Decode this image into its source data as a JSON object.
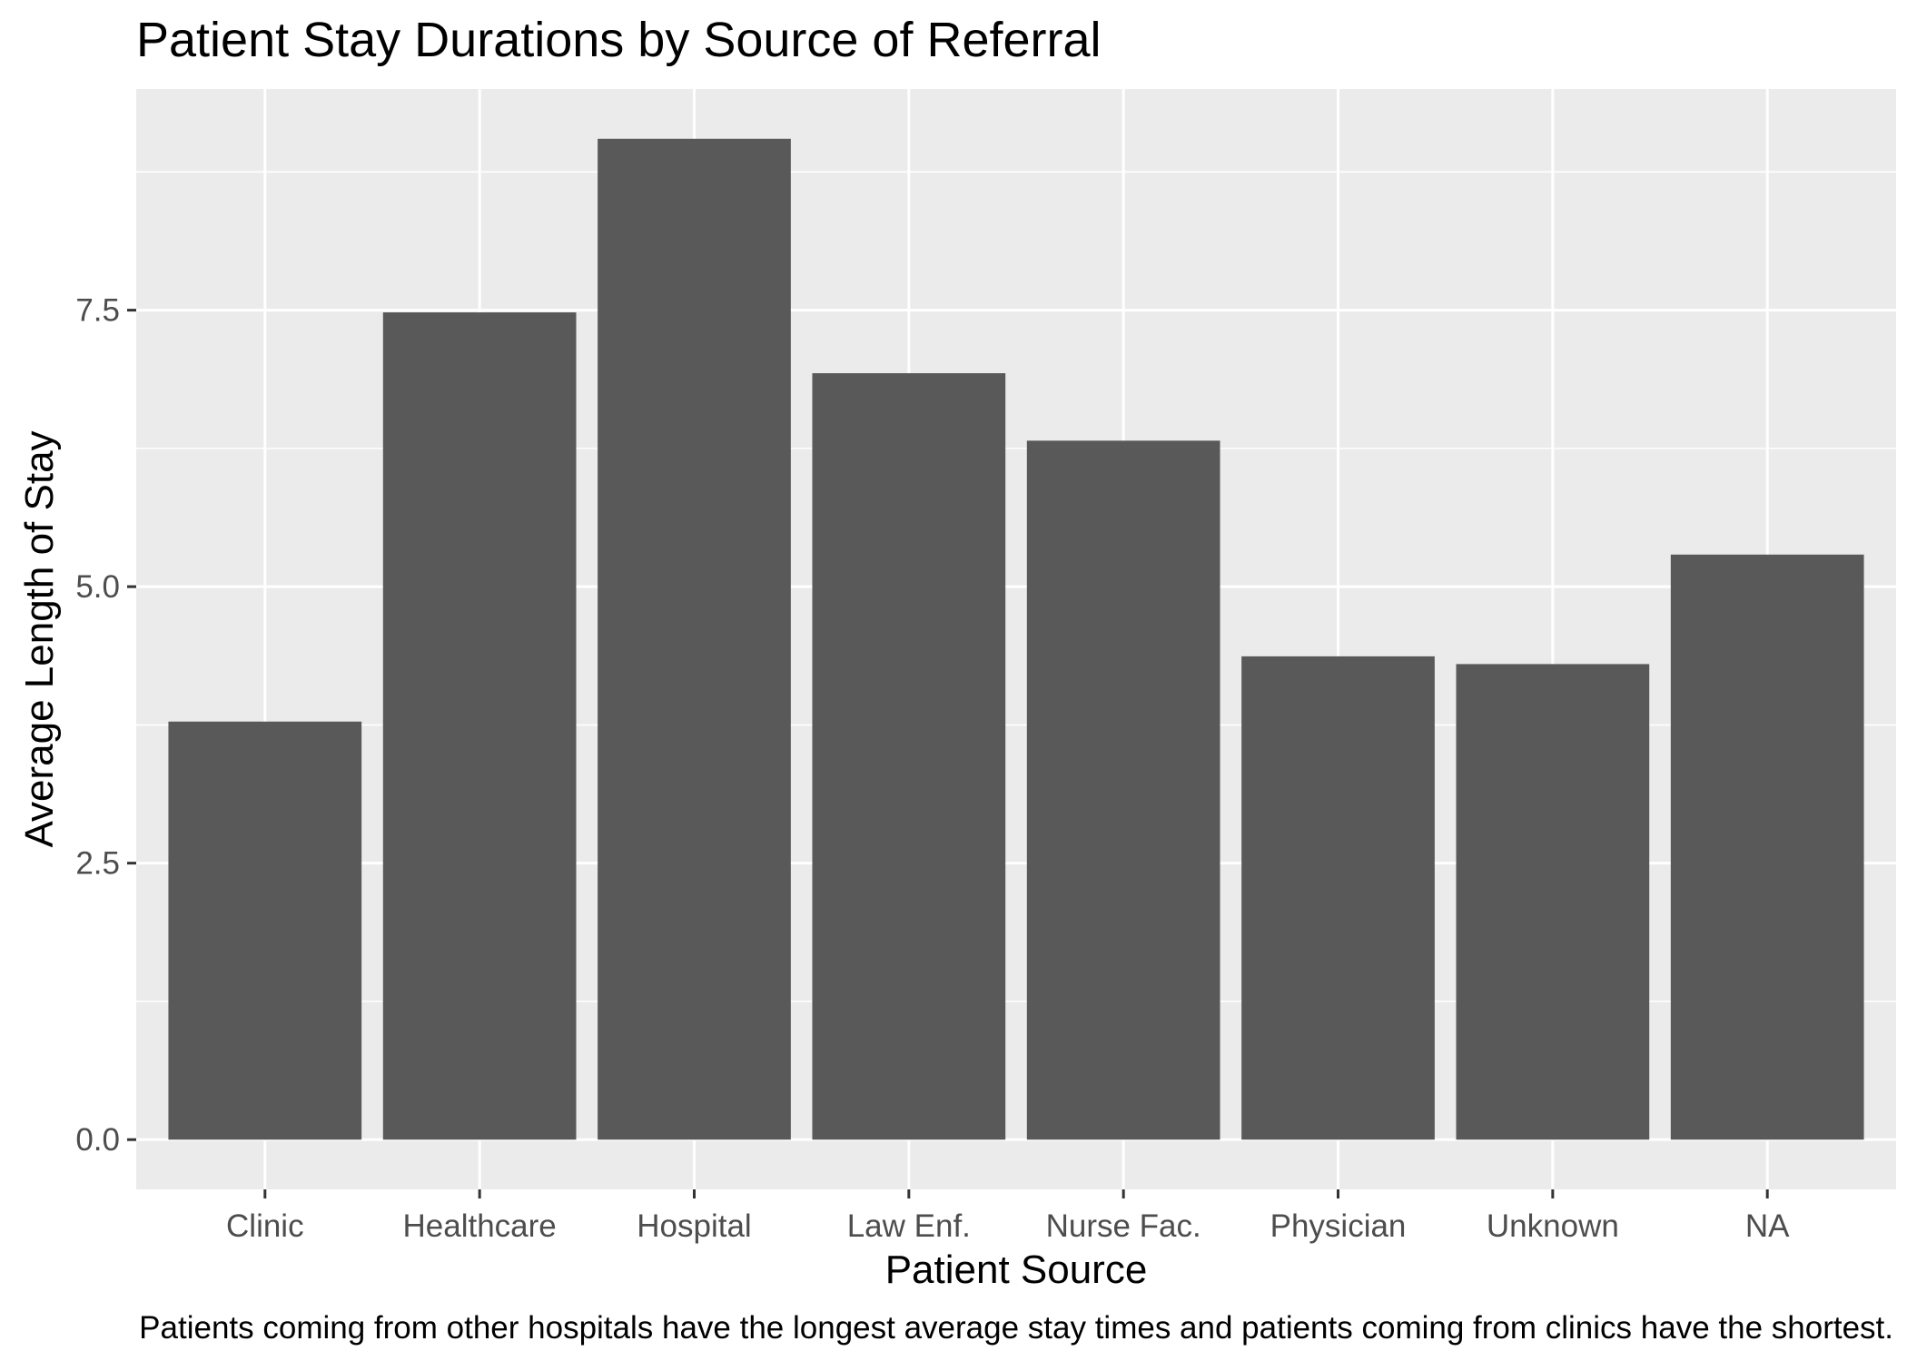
{
  "chart_data": {
    "type": "bar",
    "title": "Patient Stay Durations by Source of Referral",
    "xlabel": "Patient Source",
    "ylabel": "Average Length of Stay",
    "caption": "Patients coming from other hospitals have the longest average stay times and patients coming from clinics have the shortest.",
    "categories": [
      "Clinic",
      "Healthcare",
      "Hospital",
      "Law Enf.",
      "Nurse Fac.",
      "Physician",
      "Unknown",
      "NA"
    ],
    "values": [
      3.78,
      7.48,
      9.05,
      6.93,
      6.32,
      4.37,
      4.3,
      5.29
    ],
    "ylim": [
      -0.45,
      9.5
    ],
    "yticks": [
      0.0,
      2.5,
      5.0,
      7.5
    ],
    "ytick_labels": [
      "0.0",
      "2.5",
      "5.0",
      "7.5"
    ],
    "grid": true,
    "panel_color": "#ebebeb",
    "bar_color": "#595959",
    "grid_color": "#ffffff"
  }
}
